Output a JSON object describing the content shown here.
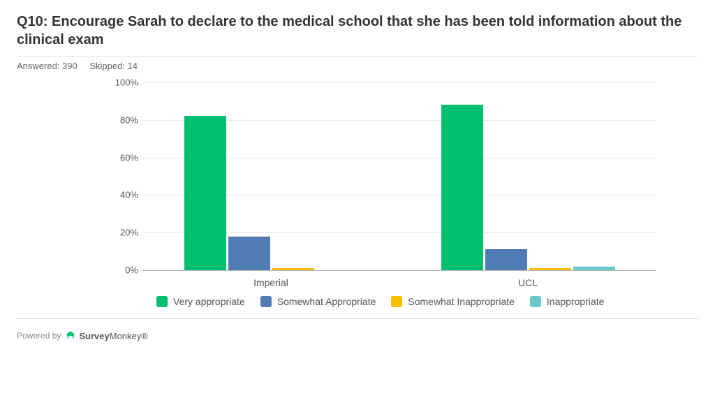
{
  "title": "Q10: Encourage Sarah to declare to the medical school that she has been told information about the clinical exam",
  "stats": {
    "answered_label": "Answered: 390",
    "skipped_label": "Skipped: 14"
  },
  "chart": {
    "type": "bar",
    "ylim": [
      0,
      100
    ],
    "ytick_step": 20,
    "ytick_suffix": "%",
    "grid_color": "#e8e8e8",
    "axis_color": "#b0b0b0",
    "background_color": "#ffffff",
    "label_fontsize": 13,
    "categories": [
      "Imperial",
      "UCL"
    ],
    "series": [
      {
        "label": "Very appropriate",
        "color": "#00bf6f",
        "values": [
          82,
          88
        ]
      },
      {
        "label": "Somewhat Appropriate",
        "color": "#507cb6",
        "values": [
          18,
          11
        ]
      },
      {
        "label": "Somewhat Inappropriate",
        "color": "#f9be00",
        "values": [
          1,
          1
        ]
      },
      {
        "label": "Inappropriate",
        "color": "#6bc8c8",
        "values": [
          0,
          2
        ]
      }
    ]
  },
  "footer": {
    "powered_by": "Powered by",
    "brand": "SurveyMonkey",
    "brand_color": "#00bf6f"
  }
}
